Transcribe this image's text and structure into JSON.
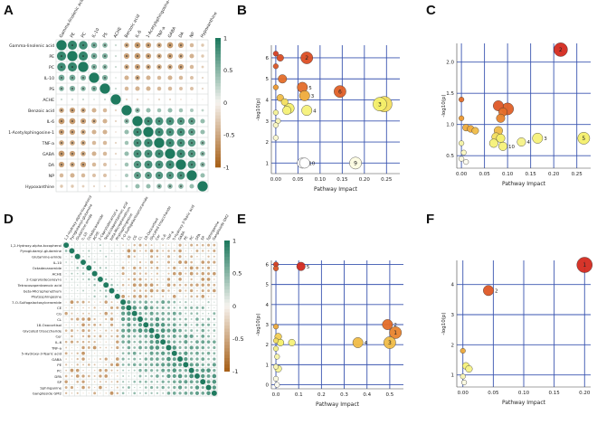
{
  "colors": {
    "positive": "#1f7a5f",
    "negative": "#a8621b",
    "neutral": "#f6f3ef",
    "grid": "#3a55b0",
    "bubble_high": "#d42a1f",
    "bubble_mid": "#ee9a30",
    "bubble_low": "#f4ef6a",
    "bubble_none": "#ffffff"
  },
  "panels": {
    "A": {
      "letter": "A",
      "chart_data": {
        "type": "heatmap",
        "rows": [
          "Gamma-linolenic acid",
          "PE",
          "PC",
          "IL-10",
          "PS",
          "ACHE",
          "Benzoic acid",
          "IL-6",
          "1-Acetylsphingosine-1",
          "TNF-a",
          "GABA",
          "DA",
          "NP",
          "Hypoxanthine"
        ],
        "cols": [
          "Gamma-linolenic acid",
          "PE",
          "PC",
          "IL-10",
          "PS",
          "ACHE",
          "Benzoic acid",
          "IL-6",
          "1-Acetylsphingosine-1",
          "TNF-a",
          "GABA",
          "DA",
          "NP",
          "Hypoxanthine"
        ],
        "colorbar": {
          "ticks": [
            "1",
            "0.5",
            "0",
            "-0.5",
            "-1"
          ]
        },
        "values": [
          [
            1,
            0.9,
            0.85,
            0.6,
            0.5,
            0.2,
            -0.5,
            -0.6,
            -0.55,
            -0.5,
            -0.6,
            -0.55,
            -0.4,
            -0.3
          ],
          [
            0.9,
            1,
            0.9,
            0.6,
            0.55,
            0.2,
            -0.55,
            -0.6,
            -0.55,
            -0.5,
            -0.55,
            -0.5,
            -0.45,
            -0.3
          ],
          [
            0.85,
            0.9,
            1,
            0.55,
            0.5,
            0.2,
            -0.5,
            -0.55,
            -0.5,
            -0.5,
            -0.5,
            -0.55,
            -0.4,
            -0.25
          ],
          [
            0.6,
            0.6,
            0.55,
            1,
            0.55,
            0.15,
            -0.45,
            -0.5,
            -0.45,
            -0.4,
            -0.45,
            -0.4,
            -0.35,
            -0.2
          ],
          [
            0.5,
            0.55,
            0.5,
            0.55,
            1,
            0.2,
            -0.4,
            -0.45,
            -0.45,
            -0.4,
            -0.4,
            -0.35,
            -0.35,
            -0.2
          ],
          [
            0.2,
            0.2,
            0.2,
            0.15,
            0.2,
            1,
            -0.2,
            -0.2,
            -0.15,
            -0.2,
            -0.2,
            -0.15,
            -0.1,
            -0.1
          ],
          [
            -0.5,
            -0.55,
            -0.5,
            -0.45,
            -0.4,
            -0.2,
            1,
            0.5,
            0.45,
            0.4,
            0.45,
            0.4,
            0.35,
            0.25
          ],
          [
            -0.6,
            -0.6,
            -0.55,
            -0.5,
            -0.45,
            -0.2,
            0.5,
            1,
            0.85,
            0.8,
            0.8,
            0.75,
            0.7,
            0.45
          ],
          [
            -0.55,
            -0.55,
            -0.5,
            -0.45,
            -0.45,
            -0.15,
            0.45,
            0.85,
            1,
            0.85,
            0.8,
            0.8,
            0.7,
            0.45
          ],
          [
            -0.5,
            -0.5,
            -0.5,
            -0.4,
            -0.4,
            -0.2,
            0.4,
            0.8,
            0.85,
            1,
            0.85,
            0.8,
            0.75,
            0.5
          ],
          [
            -0.6,
            -0.55,
            -0.5,
            -0.45,
            -0.4,
            -0.2,
            0.45,
            0.8,
            0.8,
            0.85,
            1,
            0.85,
            0.75,
            0.5
          ],
          [
            -0.55,
            -0.5,
            -0.55,
            -0.4,
            -0.35,
            -0.15,
            0.4,
            0.75,
            0.8,
            0.8,
            0.85,
            1,
            0.8,
            0.5
          ],
          [
            -0.4,
            -0.45,
            -0.4,
            -0.35,
            -0.35,
            -0.1,
            0.35,
            0.7,
            0.7,
            0.75,
            0.75,
            0.8,
            1,
            0.45
          ],
          [
            -0.3,
            -0.3,
            -0.25,
            -0.2,
            -0.2,
            -0.1,
            0.25,
            0.45,
            0.45,
            0.5,
            0.5,
            0.5,
            0.45,
            1
          ]
        ]
      }
    },
    "D": {
      "letter": "D",
      "chart_data": {
        "type": "heatmap",
        "rows": [
          "1,2-Hydroxy-alpha-tocopherol",
          "Pyroglutamyl-glutamine",
          "Glutamine-amide",
          "IL-10",
          "Octadecanamide",
          "ACHE",
          "2-Caprylodecanoyl-s",
          "Tetracosapentaenoic acid",
          "beta-Microphenethum",
          "Phytosphingosine",
          "7-O-Sulfogalactosylceramide",
          "CE",
          "CG",
          "CL",
          "18-Oxocortisol",
          "Glycated trisaccharide",
          "Cer",
          "IL-6",
          "TNF-a",
          "5-Hydroxy-3-Tearic acid",
          "GABA",
          "PE",
          "PC",
          "DPA",
          "SP",
          "Sphinganine",
          "Ganglioside GM2"
        ],
        "colorbar": {
          "ticks": [
            "1",
            "0.5",
            "0",
            "-0.5",
            "-1"
          ]
        },
        "block_split": 10
      }
    },
    "B": {
      "letter": "B",
      "chart_data": {
        "type": "scatter",
        "xlabel": "Pathway Impact",
        "ylabel": "-log10(p)",
        "xlim": [
          -0.01,
          0.28
        ],
        "ylim": [
          0.5,
          6.6
        ],
        "xticks": [
          0.0,
          0.05,
          0.1,
          0.15,
          0.2,
          0.25
        ],
        "xtick_labels": [
          "0.00",
          "0.05",
          "0.10",
          "0.15",
          "0.20",
          "0.25"
        ],
        "yticks": [
          1,
          2,
          3,
          4,
          5,
          6
        ],
        "yticks_labels": [
          "1",
          "2",
          "3",
          "4",
          "5",
          "6"
        ],
        "points": [
          {
            "x": 0.0,
            "y": 6.2,
            "size": 3,
            "level": 0.95,
            "label": ""
          },
          {
            "x": 0.0,
            "y": 5.6,
            "size": 3,
            "level": 0.9,
            "label": ""
          },
          {
            "x": 0.01,
            "y": 6.0,
            "size": 4,
            "level": 0.92,
            "label": ""
          },
          {
            "x": 0.07,
            "y": 6.0,
            "size": 7,
            "level": 0.92,
            "label": "2"
          },
          {
            "x": 0.015,
            "y": 5.0,
            "size": 5,
            "level": 0.85,
            "label": ""
          },
          {
            "x": 0.0,
            "y": 4.6,
            "size": 3,
            "level": 0.75,
            "label": ""
          },
          {
            "x": 0.06,
            "y": 4.6,
            "size": 6,
            "level": 0.85,
            "label": "5"
          },
          {
            "x": 0.065,
            "y": 4.2,
            "size": 6,
            "level": 0.7,
            "label": "3"
          },
          {
            "x": 0.145,
            "y": 4.4,
            "size": 7,
            "level": 0.88,
            "label": "6"
          },
          {
            "x": 0.01,
            "y": 4.1,
            "size": 4,
            "level": 0.65,
            "label": ""
          },
          {
            "x": 0.02,
            "y": 3.9,
            "size": 4,
            "level": 0.55,
            "label": ""
          },
          {
            "x": 0.03,
            "y": 3.6,
            "size": 6,
            "level": 0.5,
            "label": ""
          },
          {
            "x": 0.025,
            "y": 3.5,
            "size": 5,
            "level": 0.45,
            "label": ""
          },
          {
            "x": 0.07,
            "y": 3.5,
            "size": 6,
            "level": 0.45,
            "label": "4"
          },
          {
            "x": 0.245,
            "y": 3.8,
            "size": 9,
            "level": 0.55,
            "label": "1"
          },
          {
            "x": 0.235,
            "y": 3.8,
            "size": 8,
            "level": 0.5,
            "label": "3"
          },
          {
            "x": 0.0,
            "y": 3.4,
            "size": 3,
            "level": 0.35,
            "label": ""
          },
          {
            "x": 0.005,
            "y": 3.0,
            "size": 3,
            "level": 0.25,
            "label": ""
          },
          {
            "x": 0.0,
            "y": 2.8,
            "size": 3,
            "level": 0.2,
            "label": ""
          },
          {
            "x": 0.0,
            "y": 2.2,
            "size": 3,
            "level": 0.15,
            "label": ""
          },
          {
            "x": 0.06,
            "y": 1.0,
            "size": 6,
            "level": 0.0,
            "label": "10"
          },
          {
            "x": 0.065,
            "y": 1.0,
            "size": 6,
            "level": 0.0,
            "label": ""
          },
          {
            "x": 0.18,
            "y": 1.0,
            "size": 7,
            "level": 0.1,
            "label": "9"
          }
        ]
      }
    },
    "C": {
      "letter": "C",
      "chart_data": {
        "type": "scatter",
        "xlabel": "Pathway Impact",
        "ylabel": "-log10(p)",
        "xlim": [
          -0.01,
          0.28
        ],
        "ylim": [
          0.3,
          2.3
        ],
        "xticks": [
          0.0,
          0.05,
          0.1,
          0.15,
          0.2,
          0.25
        ],
        "xtick_labels": [
          "0.00",
          "0.05",
          "0.10",
          "0.15",
          "0.20",
          "0.25"
        ],
        "yticks": [
          0.5,
          1.0,
          1.5,
          2.0
        ],
        "yticks_labels": [
          "0.5",
          "1.0",
          "1.5",
          "2.0"
        ],
        "points": [
          {
            "x": 0.215,
            "y": 2.2,
            "size": 8,
            "level": 1.0,
            "label": "2"
          },
          {
            "x": 0.0,
            "y": 1.4,
            "size": 3,
            "level": 0.85,
            "label": ""
          },
          {
            "x": 0.08,
            "y": 1.3,
            "size": 6,
            "level": 0.9,
            "label": ""
          },
          {
            "x": 0.1,
            "y": 1.25,
            "size": 7,
            "level": 0.88,
            "label": ""
          },
          {
            "x": 0.09,
            "y": 1.2,
            "size": 5,
            "level": 0.85,
            "label": ""
          },
          {
            "x": 0.085,
            "y": 1.1,
            "size": 5,
            "level": 0.8,
            "label": ""
          },
          {
            "x": 0.0,
            "y": 1.1,
            "size": 3,
            "level": 0.75,
            "label": ""
          },
          {
            "x": 0.01,
            "y": 0.95,
            "size": 4,
            "level": 0.7,
            "label": ""
          },
          {
            "x": 0.02,
            "y": 0.93,
            "size": 4,
            "level": 0.7,
            "label": ""
          },
          {
            "x": 0.03,
            "y": 0.9,
            "size": 4,
            "level": 0.65,
            "label": ""
          },
          {
            "x": 0.08,
            "y": 0.9,
            "size": 5,
            "level": 0.65,
            "label": ""
          },
          {
            "x": 0.075,
            "y": 0.8,
            "size": 5,
            "level": 0.55,
            "label": ""
          },
          {
            "x": 0.085,
            "y": 0.78,
            "size": 5,
            "level": 0.5,
            "label": ""
          },
          {
            "x": 0.07,
            "y": 0.7,
            "size": 5,
            "level": 0.45,
            "label": ""
          },
          {
            "x": 0.09,
            "y": 0.65,
            "size": 5,
            "level": 0.45,
            "label": "10"
          },
          {
            "x": 0.13,
            "y": 0.72,
            "size": 5,
            "level": 0.4,
            "label": "4"
          },
          {
            "x": 0.165,
            "y": 0.78,
            "size": 6,
            "level": 0.45,
            "label": "3"
          },
          {
            "x": 0.265,
            "y": 0.78,
            "size": 7,
            "level": 0.5,
            "label": "5"
          },
          {
            "x": 0.0,
            "y": 0.7,
            "size": 3,
            "level": 0.3,
            "label": ""
          },
          {
            "x": 0.005,
            "y": 0.55,
            "size": 3,
            "level": 0.2,
            "label": ""
          },
          {
            "x": 0.0,
            "y": 0.45,
            "size": 3,
            "level": 0.1,
            "label": ""
          },
          {
            "x": 0.01,
            "y": 0.4,
            "size": 3,
            "level": 0.05,
            "label": ""
          }
        ]
      }
    },
    "E": {
      "letter": "E",
      "chart_data": {
        "type": "scatter",
        "xlabel": "Pathway Impact",
        "ylabel": "-log10(p)",
        "xlim": [
          -0.02,
          0.56
        ],
        "ylim": [
          -0.2,
          6.2
        ],
        "xticks": [
          0.0,
          0.1,
          0.2,
          0.3,
          0.4,
          0.5
        ],
        "xtick_labels": [
          "0.0",
          "0.1",
          "0.2",
          "0.3",
          "0.4",
          "0.5"
        ],
        "yticks": [
          0,
          1,
          2,
          3,
          4,
          5,
          6
        ],
        "yticks_labels": [
          "0",
          "1",
          "2",
          "3",
          "4",
          "5",
          "6"
        ],
        "points": [
          {
            "x": 0.0,
            "y": 6.0,
            "size": 3,
            "level": 0.95,
            "label": ""
          },
          {
            "x": 0.11,
            "y": 5.9,
            "size": 5,
            "level": 1.0,
            "label": "5"
          },
          {
            "x": 0.0,
            "y": 5.8,
            "size": 3,
            "level": 0.9,
            "label": ""
          },
          {
            "x": 0.49,
            "y": 3.0,
            "size": 6,
            "level": 0.85,
            "label": "2"
          },
          {
            "x": 0.525,
            "y": 2.6,
            "size": 7,
            "level": 0.8,
            "label": "1"
          },
          {
            "x": 0.36,
            "y": 2.1,
            "size": 6,
            "level": 0.65,
            "label": "4"
          },
          {
            "x": 0.5,
            "y": 2.1,
            "size": 7,
            "level": 0.65,
            "label": "3"
          },
          {
            "x": 0.0,
            "y": 2.9,
            "size": 3,
            "level": 0.7,
            "label": ""
          },
          {
            "x": 0.01,
            "y": 2.4,
            "size": 4,
            "level": 0.6,
            "label": ""
          },
          {
            "x": 0.0,
            "y": 2.2,
            "size": 3,
            "level": 0.55,
            "label": ""
          },
          {
            "x": 0.02,
            "y": 2.1,
            "size": 4,
            "level": 0.5,
            "label": ""
          },
          {
            "x": 0.07,
            "y": 2.1,
            "size": 4,
            "level": 0.45,
            "label": ""
          },
          {
            "x": 0.0,
            "y": 1.8,
            "size": 3,
            "level": 0.4,
            "label": ""
          },
          {
            "x": 0.005,
            "y": 1.4,
            "size": 3,
            "level": 0.3,
            "label": ""
          },
          {
            "x": 0.0,
            "y": 0.9,
            "size": 3,
            "level": 0.25,
            "label": ""
          },
          {
            "x": 0.01,
            "y": 0.8,
            "size": 4,
            "level": 0.35,
            "label": ""
          },
          {
            "x": 0.0,
            "y": 0.3,
            "size": 3,
            "level": 0.1,
            "label": ""
          },
          {
            "x": 0.005,
            "y": 0.0,
            "size": 3,
            "level": 0.05,
            "label": ""
          }
        ]
      }
    },
    "F": {
      "letter": "F",
      "chart_data": {
        "type": "scatter",
        "xlabel": "Pathway Impact",
        "ylabel": "-log10(p)",
        "xlim": [
          -0.01,
          0.21
        ],
        "ylim": [
          0.6,
          4.8
        ],
        "xticks": [
          0.0,
          0.05,
          0.1,
          0.15,
          0.2
        ],
        "xtick_labels": [
          "0.00",
          "0.05",
          "0.10",
          "0.15",
          "0.20"
        ],
        "yticks": [
          1,
          2,
          3,
          4
        ],
        "yticks_labels": [
          "1",
          "2",
          "3",
          "4"
        ],
        "points": [
          {
            "x": 0.2,
            "y": 4.65,
            "size": 9,
            "level": 1.0,
            "label": "1"
          },
          {
            "x": 0.042,
            "y": 3.8,
            "size": 6,
            "level": 0.9,
            "label": "2"
          },
          {
            "x": 0.0,
            "y": 1.8,
            "size": 3,
            "level": 0.7,
            "label": ""
          },
          {
            "x": 0.005,
            "y": 1.3,
            "size": 4,
            "level": 0.45,
            "label": ""
          },
          {
            "x": 0.01,
            "y": 1.2,
            "size": 4,
            "level": 0.4,
            "label": ""
          },
          {
            "x": 0.0,
            "y": 0.95,
            "size": 3,
            "level": 0.25,
            "label": ""
          },
          {
            "x": 0.002,
            "y": 0.75,
            "size": 3,
            "level": 0.1,
            "label": ""
          }
        ]
      }
    }
  }
}
